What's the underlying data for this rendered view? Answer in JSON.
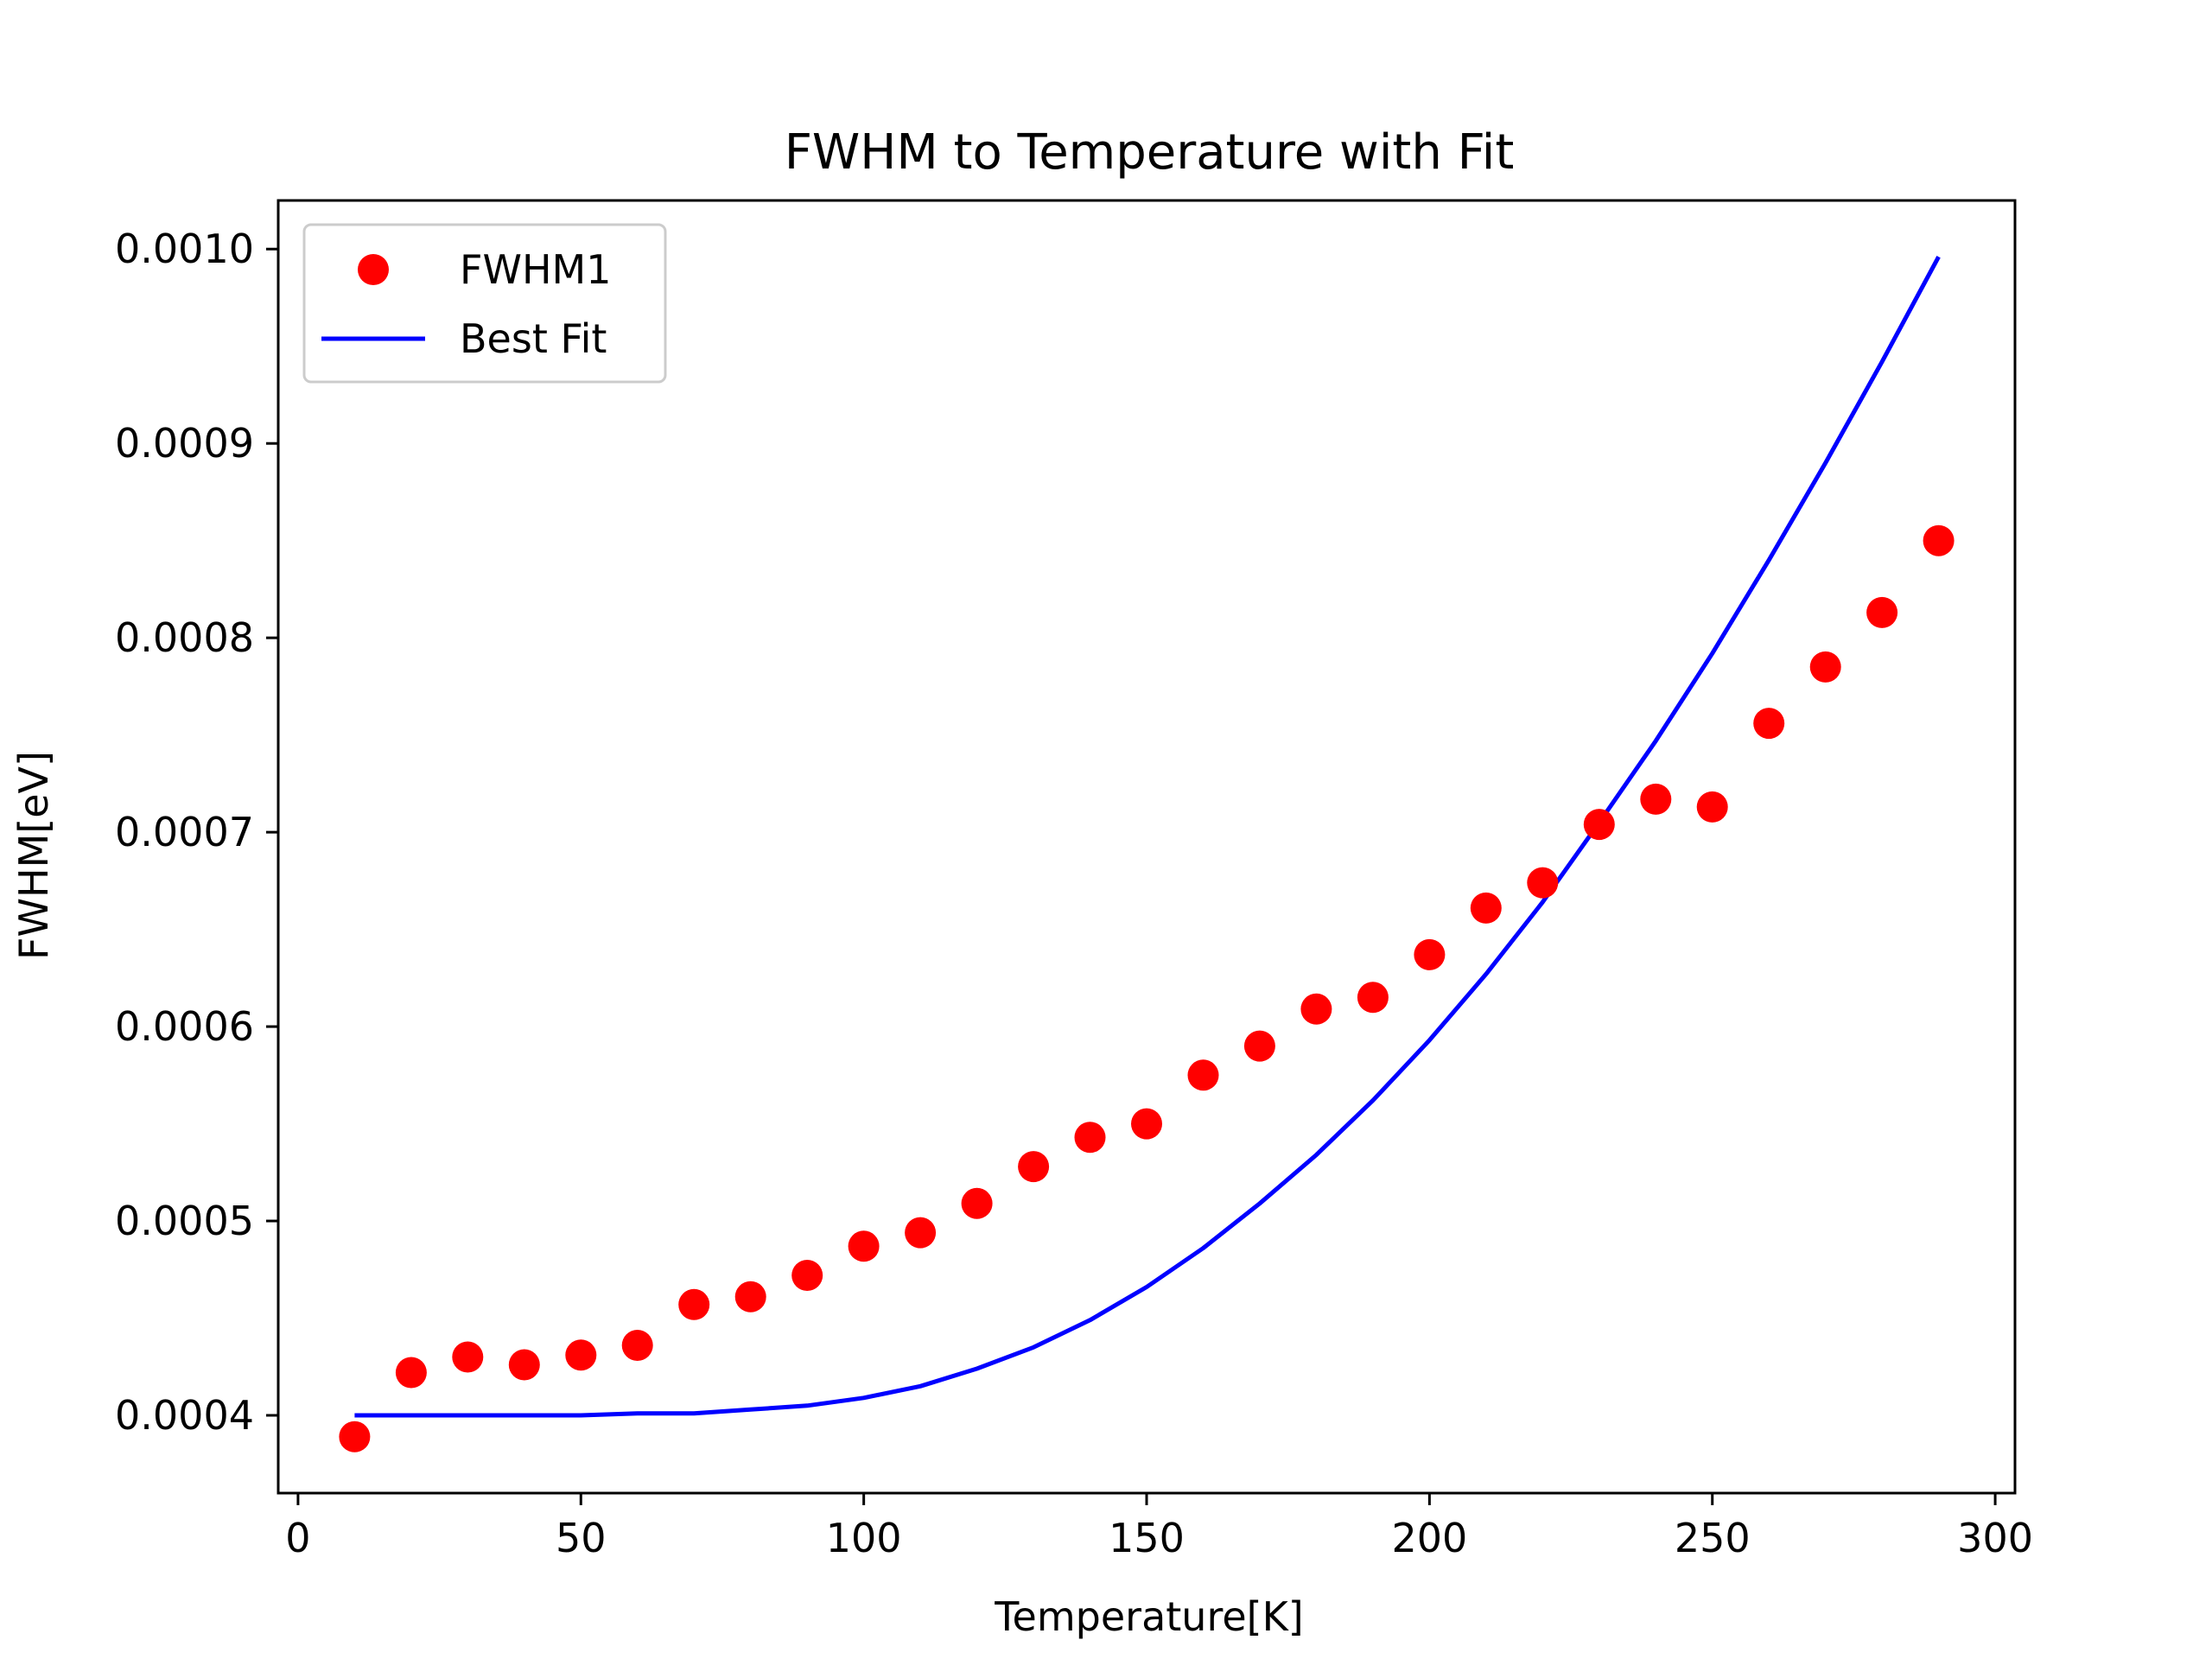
{
  "chart_data": {
    "type": "scatter",
    "title": "FWHM to Temperature with Fit",
    "xlabel": "Temperature[K]",
    "ylabel": "FWHM[eV]",
    "xlim": [
      -3.5,
      303.5
    ],
    "ylim": [
      0.00036,
      0.001025
    ],
    "xticks": [
      0,
      50,
      100,
      150,
      200,
      250,
      300
    ],
    "xtick_labels": [
      "0",
      "50",
      "100",
      "150",
      "200",
      "250",
      "300"
    ],
    "yticks": [
      0.0004,
      0.0005,
      0.0006,
      0.0007,
      0.0008,
      0.0009,
      0.001
    ],
    "ytick_labels": [
      "0.0004",
      "0.0005",
      "0.0006",
      "0.0007",
      "0.0008",
      "0.0009",
      "0.0010"
    ],
    "grid": false,
    "legend_position": "top-left",
    "series": [
      {
        "name": "FWHM1",
        "kind": "scatter",
        "color": "#ff0000",
        "x": [
          10,
          20,
          30,
          40,
          50,
          60,
          70,
          80,
          90,
          100,
          110,
          120,
          130,
          140,
          150,
          160,
          170,
          180,
          190,
          200,
          210,
          220,
          230,
          240,
          250,
          260,
          270,
          280,
          290
        ],
        "y": [
          0.000389,
          0.000422,
          0.00043,
          0.000426,
          0.000431,
          0.000436,
          0.000457,
          0.000461,
          0.000472,
          0.000487,
          0.000494,
          0.000509,
          0.000528,
          0.000543,
          0.00055,
          0.000575,
          0.00059,
          0.000609,
          0.000615,
          0.000637,
          0.000661,
          0.000674,
          0.000704,
          0.000717,
          0.000713,
          0.000756,
          0.000785,
          0.000813,
          0.00085
        ]
      },
      {
        "name": "Best Fit",
        "kind": "line",
        "color": "#0000ff",
        "x": [
          10,
          20,
          30,
          40,
          50,
          60,
          70,
          80,
          90,
          100,
          110,
          120,
          130,
          140,
          150,
          160,
          170,
          180,
          190,
          200,
          210,
          220,
          230,
          240,
          250,
          260,
          270,
          280,
          290
        ],
        "y": [
          0.0004,
          0.0004,
          0.0004,
          0.0004,
          0.0004,
          0.000401,
          0.000401,
          0.000403,
          0.000405,
          0.000409,
          0.000415,
          0.000424,
          0.000435,
          0.000449,
          0.000466,
          0.000486,
          0.000509,
          0.000534,
          0.000562,
          0.000593,
          0.000627,
          0.000664,
          0.000705,
          0.000747,
          0.000792,
          0.00084,
          0.00089,
          0.000942,
          0.000996
        ]
      }
    ]
  }
}
